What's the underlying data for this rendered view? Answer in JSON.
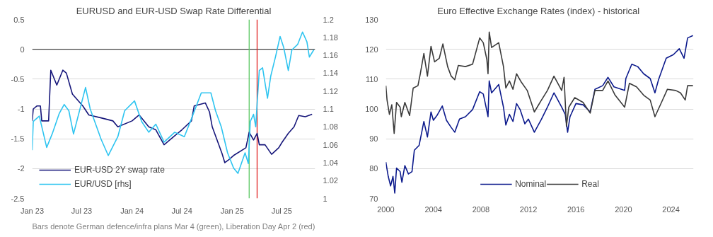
{
  "chart_data": [
    {
      "type": "line",
      "title": "EURUSD and EUR-USD Swap Rate Differential",
      "ylim": [
        -2.5,
        0.5
      ],
      "yticks": [
        -2.5,
        -2,
        -1.5,
        -1,
        -0.5,
        0,
        0.5
      ],
      "y2lim": [
        1,
        1.2
      ],
      "y2ticks": [
        1,
        1.02,
        1.04,
        1.06,
        1.08,
        1.1,
        1.12,
        1.14,
        1.16,
        1.18,
        1.2
      ],
      "xlim": [
        "2023-01-01",
        "2025-10-31"
      ],
      "xticks": [
        {
          "value": "2023-01-01",
          "label": "Jan 23"
        },
        {
          "value": "2023-07-01",
          "label": "Jul 23"
        },
        {
          "value": "2024-01-01",
          "label": "Jan 24"
        },
        {
          "value": "2024-07-01",
          "label": "Jul 24"
        },
        {
          "value": "2025-01-01",
          "label": "Jan 25"
        },
        {
          "value": "2025-07-01",
          "label": "Jul 25"
        }
      ],
      "grid": "y",
      "legend": "bottom left",
      "series": [
        {
          "name": "EUR-USD 2Y swap rate",
          "color": "#16167a",
          "x": [
            "2023-01-01",
            "2023-01-05",
            "2023-01-18",
            "2023-01-31",
            "2023-02-05",
            "2023-03-02",
            "2023-03-10",
            "2023-04-01",
            "2023-04-23",
            "2023-05-06",
            "2023-05-28",
            "2023-07-05",
            "2023-07-27",
            "2023-09-10",
            "2023-10-23",
            "2023-11-10",
            "2024-01-01",
            "2024-01-27",
            "2024-03-02",
            "2024-03-28",
            "2024-04-27",
            "2024-06-05",
            "2024-07-01",
            "2024-08-05",
            "2024-08-15",
            "2024-09-25",
            "2024-10-10",
            "2024-10-20",
            "2024-11-25",
            "2024-12-05",
            "2024-12-20",
            "2025-01-06",
            "2025-02-20",
            "2025-03-04",
            "2025-03-20",
            "2025-04-02",
            "2025-04-10",
            "2025-05-01",
            "2025-05-25",
            "2025-06-20",
            "2025-07-02",
            "2025-07-25",
            "2025-08-15",
            "2025-09-01",
            "2025-09-25",
            "2025-10-20"
          ],
          "values": [
            -1.2,
            -1.0,
            -0.95,
            -0.95,
            -1.2,
            -1.2,
            -0.35,
            -0.6,
            -0.35,
            -0.4,
            -0.75,
            -0.95,
            -1.1,
            -1.15,
            -1.2,
            -1.3,
            -1.2,
            -1.1,
            -1.3,
            -1.35,
            -1.6,
            -1.45,
            -1.35,
            -1.2,
            -0.95,
            -0.9,
            -1.05,
            -1.3,
            -1.75,
            -1.9,
            -1.85,
            -1.78,
            -1.65,
            -1.39,
            -1.52,
            -1.41,
            -1.6,
            -1.6,
            -1.76,
            -1.65,
            -1.56,
            -1.41,
            -1.3,
            -1.11,
            -1.13,
            -1.09
          ]
        },
        {
          "name": "EUR/USD [rhs]",
          "color": "#2ec4f0",
          "axis": "y2",
          "x": [
            "2023-01-01",
            "2023-01-05",
            "2023-01-27",
            "2023-02-23",
            "2023-03-15",
            "2023-04-10",
            "2023-04-28",
            "2023-05-15",
            "2023-06-01",
            "2023-06-23",
            "2023-07-15",
            "2023-08-01",
            "2023-09-10",
            "2023-10-06",
            "2023-11-10",
            "2023-12-05",
            "2024-01-10",
            "2024-02-05",
            "2024-03-02",
            "2024-03-28",
            "2024-04-27",
            "2024-06-05",
            "2024-07-10",
            "2024-08-05",
            "2024-09-10",
            "2024-10-15",
            "2024-11-01",
            "2024-11-22",
            "2024-12-15",
            "2025-01-06",
            "2025-01-22",
            "2025-02-17",
            "2025-03-01",
            "2025-03-08",
            "2025-03-20",
            "2025-03-28",
            "2025-04-02",
            "2025-04-10",
            "2025-04-22",
            "2025-05-10",
            "2025-05-22",
            "2025-06-08",
            "2025-06-25",
            "2025-07-08",
            "2025-07-25",
            "2025-08-07",
            "2025-08-28",
            "2025-09-15",
            "2025-10-01",
            "2025-10-10",
            "2025-10-26"
          ],
          "values": [
            1.054,
            1.086,
            1.092,
            1.057,
            1.072,
            1.095,
            1.105,
            1.098,
            1.072,
            1.098,
            1.124,
            1.1,
            1.066,
            1.048,
            1.069,
            1.098,
            1.109,
            1.086,
            1.074,
            1.083,
            1.063,
            1.074,
            1.069,
            1.089,
            1.118,
            1.118,
            1.098,
            1.08,
            1.051,
            1.034,
            1.028,
            1.051,
            1.039,
            1.086,
            1.094,
            1.08,
            1.106,
            1.143,
            1.146,
            1.112,
            1.137,
            1.158,
            1.181,
            1.169,
            1.143,
            1.166,
            1.172,
            1.186,
            1.175,
            1.158,
            1.166
          ]
        }
      ],
      "ref_lines": [
        {
          "axis": "y",
          "value": 0,
          "color": "#404040"
        },
        {
          "axis": "x",
          "value": "2025-03-04",
          "color": "#5cc864"
        },
        {
          "axis": "x",
          "value": "2025-04-02",
          "color": "#e02020"
        }
      ],
      "annotations": [
        "Bars denote German defence/infra plans Mar 4 (green), Liberation Day Apr 2 (red)"
      ]
    },
    {
      "type": "line",
      "title": "Euro Effective Exchange Rates (index)  - historical",
      "xlim": [
        2000,
        2025.9
      ],
      "xticks": [
        2000,
        2004,
        2008,
        2012,
        2016,
        2020,
        2024
      ],
      "ylim": [
        70,
        130
      ],
      "yticks": [
        70,
        80,
        90,
        100,
        110,
        120,
        130
      ],
      "grid": "y",
      "legend": "bottom",
      "series": [
        {
          "name": "Nominal",
          "color": "#0c1a8c",
          "x": [
            2000.0,
            2000.2,
            2000.4,
            2000.6,
            2000.75,
            2000.9,
            2001.2,
            2001.35,
            2001.6,
            2001.9,
            2002.2,
            2002.4,
            2002.8,
            2003.0,
            2003.2,
            2003.5,
            2003.8,
            2004.0,
            2004.3,
            2004.75,
            2005.1,
            2005.5,
            2005.8,
            2006.2,
            2006.7,
            2007.3,
            2007.9,
            2008.2,
            2008.5,
            2008.6,
            2008.7,
            2008.9,
            2009.5,
            2009.9,
            2010.1,
            2010.4,
            2010.7,
            2011.0,
            2011.3,
            2011.7,
            2012.0,
            2012.5,
            2013.1,
            2013.6,
            2014.15,
            2014.8,
            2015.1,
            2015.3,
            2015.5,
            2016.0,
            2016.6,
            2017.2,
            2017.6,
            2018.25,
            2018.7,
            2019.2,
            2020.1,
            2020.2,
            2020.7,
            2021.2,
            2021.7,
            2022.25,
            2022.65,
            2022.95,
            2023.6,
            2024.2,
            2024.7,
            2025.1,
            2025.4,
            2025.85
          ],
          "values": [
            82.2,
            77.4,
            74.2,
            77.4,
            71.8,
            80.2,
            79,
            75.4,
            81,
            78.2,
            79,
            86.2,
            87.8,
            91.8,
            95.8,
            90.6,
            99,
            96.2,
            97.8,
            101,
            96.2,
            93.8,
            92.2,
            96.6,
            97.4,
            99.8,
            105.8,
            105,
            99.4,
            97.4,
            109.4,
            105.4,
            108.2,
            100.6,
            94.6,
            98.2,
            95.8,
            101.8,
            99.8,
            95,
            96.6,
            92.2,
            96.6,
            100.6,
            105.4,
            100.6,
            98.2,
            92.2,
            97.4,
            101.8,
            101.4,
            99,
            106.6,
            107.8,
            110.6,
            107.4,
            106.2,
            110.2,
            115,
            114.2,
            111.8,
            110.2,
            105.4,
            109.8,
            117,
            118.2,
            120.2,
            117,
            123.8,
            124.6
          ]
        },
        {
          "name": "Real",
          "color": "#3a3a3a",
          "x": [
            2000.0,
            2000.1,
            2000.3,
            2000.5,
            2000.7,
            2000.9,
            2001.2,
            2001.3,
            2001.6,
            2002.0,
            2002.3,
            2002.7,
            2002.9,
            2003.2,
            2003.5,
            2003.8,
            2004.1,
            2004.5,
            2004.8,
            2005.2,
            2005.5,
            2005.8,
            2006.1,
            2006.7,
            2007.3,
            2007.9,
            2008.2,
            2008.5,
            2008.6,
            2008.7,
            2008.9,
            2009.5,
            2009.9,
            2010.1,
            2010.4,
            2010.7,
            2011.0,
            2011.4,
            2011.9,
            2012.5,
            2013.1,
            2013.6,
            2014.15,
            2014.8,
            2015.0,
            2015.2,
            2015.4,
            2015.9,
            2016.6,
            2017.2,
            2017.6,
            2018.25,
            2018.7,
            2019.3,
            2020.1,
            2020.5,
            2021.1,
            2021.7,
            2022.25,
            2022.65,
            2023.2,
            2023.7,
            2024.4,
            2024.8,
            2025.2,
            2025.4,
            2025.85
          ],
          "values": [
            107.8,
            103,
            98.2,
            101.4,
            91.8,
            102.2,
            100.6,
            97.4,
            102.2,
            97.8,
            107,
            107.8,
            111.8,
            118.6,
            111,
            121,
            115.8,
            117,
            121.8,
            114.2,
            111,
            109.8,
            114.6,
            114.2,
            115,
            123.8,
            122.2,
            116.6,
            111.8,
            125.8,
            120.6,
            122.2,
            114.2,
            107,
            109.4,
            106.6,
            111.8,
            109,
            106.2,
            99,
            103,
            106.2,
            111,
            106.2,
            110.6,
            94.2,
            100.6,
            103.8,
            102.2,
            98.6,
            106.2,
            106.2,
            109.4,
            104.6,
            100.6,
            108.6,
            107.4,
            104.6,
            103,
            97.4,
            102.2,
            106.6,
            106.2,
            105.4,
            103,
            107.8,
            107.8
          ]
        }
      ]
    }
  ]
}
